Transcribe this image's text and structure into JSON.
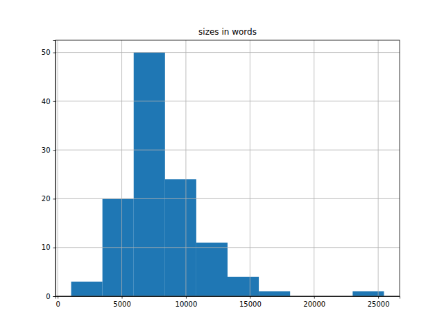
{
  "chart_data": {
    "type": "histogram",
    "title": "sizes in words",
    "bins": [
      1050,
      3490,
      5930,
      8370,
      10810,
      13250,
      15690,
      18130,
      20570,
      23010,
      25450
    ],
    "values": [
      3,
      20,
      50,
      24,
      11,
      4,
      1,
      0,
      0,
      1
    ],
    "color": "#1f77b4",
    "xlim": [
      -170,
      26670
    ],
    "xticks": [
      0,
      5000,
      10000,
      15000,
      20000,
      25000
    ],
    "ylim": [
      0,
      52.5
    ],
    "yticks": [
      0,
      10,
      20,
      30,
      40,
      50
    ],
    "grid": true
  }
}
